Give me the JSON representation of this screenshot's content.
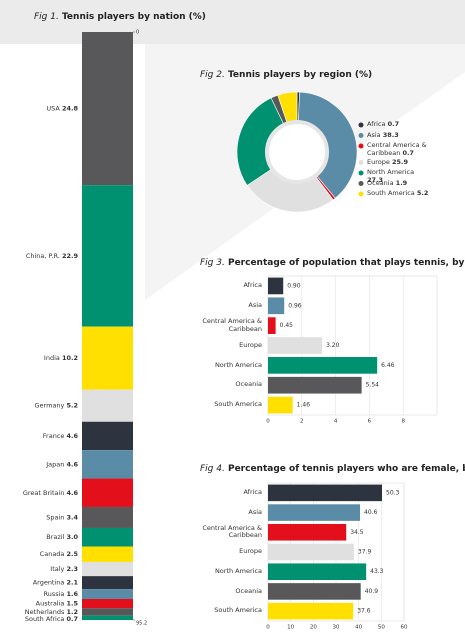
{
  "chart_data": [
    {
      "type": "stacked_bar",
      "fig": "Fig 1.",
      "title": "Tennis players by nation (%)",
      "categories": [
        "USA",
        "China, P.R.",
        "India",
        "Germany",
        "France",
        "Japan",
        "Great Britain",
        "Spain",
        "Brazil",
        "Canada",
        "Italy",
        "Argentina",
        "Russia",
        "Australia",
        "Netherlands",
        "South Africa"
      ],
      "values": [
        24.8,
        22.9,
        10.2,
        5.2,
        4.6,
        4.6,
        4.6,
        3.4,
        3.0,
        2.5,
        2.3,
        2.1,
        1.6,
        1.5,
        1.2,
        0.7
      ],
      "value_labels": [
        "24.8",
        "22.9",
        "10.2",
        "5.2",
        "4.6",
        "4.6",
        "4.6",
        "3.4",
        "3.0",
        "2.5",
        "2.3",
        "2.1",
        "1.6",
        "1.5",
        "1.2",
        "0.7"
      ],
      "colors": [
        "#58585a",
        "#009170",
        "#ffe000",
        "#e0e0e0",
        "#2d3440",
        "#5a8ca8",
        "#e3101c",
        "#58585a",
        "#009170",
        "#ffe000",
        "#e0e0e0",
        "#2d3440",
        "#5a8ca8",
        "#e3101c",
        "#58585a",
        "#009170"
      ],
      "ylim": [
        0,
        95.2
      ],
      "yticks": [
        0,
        95.2
      ]
    },
    {
      "type": "donut",
      "fig": "Fig 2.",
      "title": "Tennis players by region (%)",
      "categories": [
        "Africa",
        "Asia",
        "Central America & Caribbean",
        "Europe",
        "North America",
        "Oceania",
        "South America"
      ],
      "values": [
        0.7,
        38.3,
        0.7,
        25.9,
        27.3,
        1.9,
        5.2
      ],
      "colors": [
        "#2d3440",
        "#5a8ca8",
        "#e3101c",
        "#e0e0e0",
        "#009170",
        "#58585a",
        "#ffe000"
      ]
    },
    {
      "type": "hbar",
      "fig": "Fig 3.",
      "title": "Percentage of population that plays tennis, by region (%)",
      "categories": [
        "Africa",
        "Asia",
        "Central America & Caribbean",
        "Europe",
        "North America",
        "Oceania",
        "South America"
      ],
      "values": [
        0.9,
        0.96,
        0.45,
        3.2,
        6.46,
        5.54,
        1.46
      ],
      "value_labels": [
        "0.90",
        "0.96",
        "0.45",
        "3.20",
        "6.46",
        "5.54",
        "1.46"
      ],
      "colors": [
        "#2d3440",
        "#5a8ca8",
        "#e3101c",
        "#e0e0e0",
        "#009170",
        "#58585a",
        "#ffe000"
      ],
      "xlim": [
        0,
        10
      ],
      "xticks": [
        0,
        2,
        4,
        6,
        8
      ],
      "grid": true
    },
    {
      "type": "hbar",
      "fig": "Fig 4.",
      "title": "Percentage of tennis players who are female, by region (%)",
      "categories": [
        "Africa",
        "Asia",
        "Central America & Caribbean",
        "Europe",
        "North America",
        "Oceania",
        "South America"
      ],
      "values": [
        50.3,
        40.6,
        34.5,
        37.9,
        43.3,
        40.9,
        37.6
      ],
      "colors": [
        "#2d3440",
        "#5a8ca8",
        "#e3101c",
        "#e0e0e0",
        "#009170",
        "#58585a",
        "#ffe000"
      ],
      "xlim": [
        0,
        60
      ],
      "xticks": [
        0,
        10,
        20,
        30,
        40,
        50,
        60
      ],
      "grid": true
    }
  ]
}
